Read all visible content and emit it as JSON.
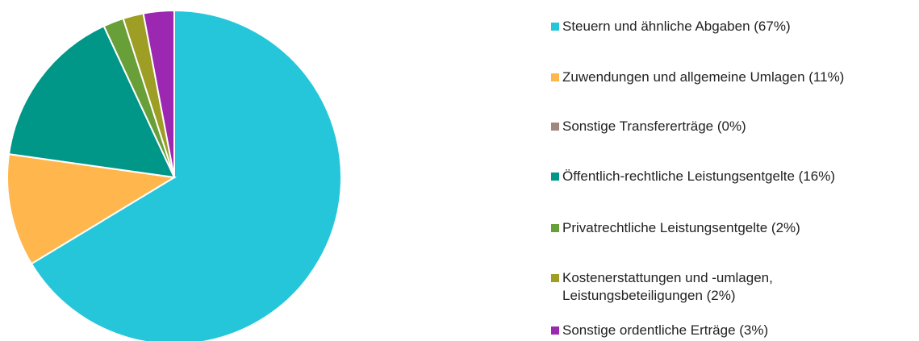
{
  "chart_data": {
    "type": "pie",
    "categories": [
      "Steuern und ähnliche Abgaben (67%)",
      "Zuwendungen und allgemeine Umlagen (11%)",
      "Sonstige Transfererträge (0%)",
      "Öffentlich-rechtliche Leistungsentgelte (16%)",
      "Privatrechtliche Leistungsentgelte (2%)",
      "Kostenerstattungen und -umlagen,\nLeistungsbeteiligungen (2%)",
      "Sonstige ordentliche Erträge (3%)"
    ],
    "values": [
      67,
      11,
      0,
      16,
      2,
      2,
      3
    ],
    "colors": [
      "#26c6da",
      "#ffb74d",
      "#a1887f",
      "#009688",
      "#689f38",
      "#9e9d24",
      "#9c27b0"
    ],
    "legend": "right"
  }
}
